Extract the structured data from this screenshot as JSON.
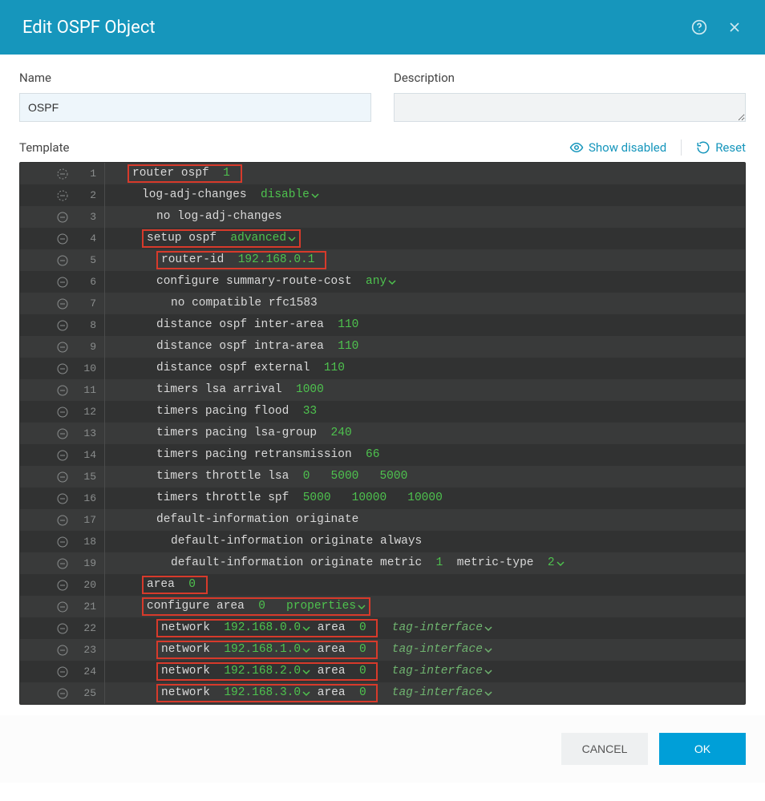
{
  "dialog": {
    "title": "Edit OSPF Object",
    "name_label": "Name",
    "name_value": "OSPF",
    "desc_label": "Description",
    "desc_value": "",
    "template_label": "Template",
    "show_disabled": "Show disabled",
    "reset": "Reset",
    "cancel": "CANCEL",
    "ok": "OK"
  },
  "colors": {
    "header_bg": "#1696bc",
    "link": "#1696bc",
    "editor_bg_odd": "#393a3a",
    "editor_bg_even": "#313232",
    "editor_text": "#d9d9d9",
    "green": "#4ec24e",
    "highlight_border": "#d73a2b",
    "gutter_text": "#8a8d8d"
  },
  "lines": [
    {
      "n": 1,
      "gicon": "dash",
      "indent": 1,
      "highlight": true,
      "segments": [
        {
          "t": "router ospf ",
          "c": "grey"
        },
        {
          "t": " 1 ",
          "c": "green"
        }
      ]
    },
    {
      "n": 2,
      "gicon": "dash",
      "indent": 2,
      "highlight": false,
      "segments": [
        {
          "t": "log-adj-changes  ",
          "c": "grey"
        },
        {
          "t": "disable",
          "c": "green",
          "dd": true
        }
      ]
    },
    {
      "n": 3,
      "gicon": "minus",
      "indent": 3,
      "highlight": false,
      "segments": [
        {
          "t": "no log-adj-changes",
          "c": "grey"
        }
      ]
    },
    {
      "n": 4,
      "gicon": "minus",
      "indent": 2,
      "highlight": true,
      "segments": [
        {
          "t": "setup ospf ",
          "c": "grey"
        },
        {
          "t": " advanced",
          "c": "green",
          "dd": true
        }
      ]
    },
    {
      "n": 5,
      "gicon": "minus",
      "indent": 3,
      "highlight": true,
      "segments": [
        {
          "t": "router-id ",
          "c": "grey"
        },
        {
          "t": " 192.168.0.1 ",
          "c": "green"
        }
      ]
    },
    {
      "n": 6,
      "gicon": "minus",
      "indent": 3,
      "highlight": false,
      "segments": [
        {
          "t": "configure summary-route-cost  ",
          "c": "grey"
        },
        {
          "t": "any",
          "c": "green",
          "dd": true
        }
      ]
    },
    {
      "n": 7,
      "gicon": "minus",
      "indent": 4,
      "highlight": false,
      "segments": [
        {
          "t": "no compatible rfc1583",
          "c": "grey"
        }
      ]
    },
    {
      "n": 8,
      "gicon": "minus",
      "indent": 3,
      "highlight": false,
      "segments": [
        {
          "t": "distance ospf inter-area  ",
          "c": "grey"
        },
        {
          "t": "110",
          "c": "green"
        }
      ]
    },
    {
      "n": 9,
      "gicon": "minus",
      "indent": 3,
      "highlight": false,
      "segments": [
        {
          "t": "distance ospf intra-area  ",
          "c": "grey"
        },
        {
          "t": "110",
          "c": "green"
        }
      ]
    },
    {
      "n": 10,
      "gicon": "minus",
      "indent": 3,
      "highlight": false,
      "segments": [
        {
          "t": "distance ospf external  ",
          "c": "grey"
        },
        {
          "t": "110",
          "c": "green"
        }
      ]
    },
    {
      "n": 11,
      "gicon": "minus",
      "indent": 3,
      "highlight": false,
      "segments": [
        {
          "t": "timers lsa arrival  ",
          "c": "grey"
        },
        {
          "t": "1000",
          "c": "green"
        }
      ]
    },
    {
      "n": 12,
      "gicon": "minus",
      "indent": 3,
      "highlight": false,
      "segments": [
        {
          "t": "timers pacing flood  ",
          "c": "grey"
        },
        {
          "t": "33",
          "c": "green"
        }
      ]
    },
    {
      "n": 13,
      "gicon": "minus",
      "indent": 3,
      "highlight": false,
      "segments": [
        {
          "t": "timers pacing lsa-group  ",
          "c": "grey"
        },
        {
          "t": "240",
          "c": "green"
        }
      ]
    },
    {
      "n": 14,
      "gicon": "minus",
      "indent": 3,
      "highlight": false,
      "segments": [
        {
          "t": "timers pacing retransmission  ",
          "c": "grey"
        },
        {
          "t": "66",
          "c": "green"
        }
      ]
    },
    {
      "n": 15,
      "gicon": "minus",
      "indent": 3,
      "highlight": false,
      "segments": [
        {
          "t": "timers throttle lsa  ",
          "c": "grey"
        },
        {
          "t": "0",
          "c": "green"
        },
        {
          "t": "   ",
          "c": "grey"
        },
        {
          "t": "5000",
          "c": "green"
        },
        {
          "t": "   ",
          "c": "grey"
        },
        {
          "t": "5000",
          "c": "green"
        }
      ]
    },
    {
      "n": 16,
      "gicon": "minus",
      "indent": 3,
      "highlight": false,
      "segments": [
        {
          "t": "timers throttle spf  ",
          "c": "grey"
        },
        {
          "t": "5000",
          "c": "green"
        },
        {
          "t": "   ",
          "c": "grey"
        },
        {
          "t": "10000",
          "c": "green"
        },
        {
          "t": "   ",
          "c": "grey"
        },
        {
          "t": "10000",
          "c": "green"
        }
      ]
    },
    {
      "n": 17,
      "gicon": "minus",
      "indent": 3,
      "highlight": false,
      "segments": [
        {
          "t": "default-information originate",
          "c": "grey"
        }
      ]
    },
    {
      "n": 18,
      "gicon": "minus",
      "indent": 4,
      "highlight": false,
      "segments": [
        {
          "t": "default-information originate always",
          "c": "grey"
        }
      ]
    },
    {
      "n": 19,
      "gicon": "minus",
      "indent": 4,
      "highlight": false,
      "segments": [
        {
          "t": "default-information originate metric  ",
          "c": "grey"
        },
        {
          "t": "1",
          "c": "green"
        },
        {
          "t": "  metric-type  ",
          "c": "grey"
        },
        {
          "t": "2",
          "c": "green",
          "dd": true
        }
      ]
    },
    {
      "n": 20,
      "gicon": "minus",
      "indent": 2,
      "highlight": true,
      "segments": [
        {
          "t": "area ",
          "c": "grey"
        },
        {
          "t": " 0 ",
          "c": "green"
        }
      ]
    },
    {
      "n": 21,
      "gicon": "minus",
      "indent": 2,
      "highlight": true,
      "segments": [
        {
          "t": "configure area ",
          "c": "grey"
        },
        {
          "t": " 0",
          "c": "green"
        },
        {
          "t": "   ",
          "c": "grey"
        },
        {
          "t": "properties",
          "c": "green",
          "dd": true
        }
      ]
    },
    {
      "n": 22,
      "gicon": "minus",
      "indent": 3,
      "highlight": true,
      "segments": [
        {
          "t": "network ",
          "c": "grey"
        },
        {
          "t": " 192.168.0.0",
          "c": "green",
          "dd": true
        },
        {
          "t": " area ",
          "c": "grey"
        },
        {
          "t": " 0 ",
          "c": "green"
        }
      ],
      "tail": {
        "t": "tag-interface",
        "dd": true
      }
    },
    {
      "n": 23,
      "gicon": "minus",
      "indent": 3,
      "highlight": true,
      "segments": [
        {
          "t": "network ",
          "c": "grey"
        },
        {
          "t": " 192.168.1.0",
          "c": "green",
          "dd": true
        },
        {
          "t": " area ",
          "c": "grey"
        },
        {
          "t": " 0 ",
          "c": "green"
        }
      ],
      "tail": {
        "t": "tag-interface",
        "dd": true
      }
    },
    {
      "n": 24,
      "gicon": "minus",
      "indent": 3,
      "highlight": true,
      "segments": [
        {
          "t": "network ",
          "c": "grey"
        },
        {
          "t": " 192.168.2.0",
          "c": "green",
          "dd": true
        },
        {
          "t": " area ",
          "c": "grey"
        },
        {
          "t": " 0 ",
          "c": "green"
        }
      ],
      "tail": {
        "t": "tag-interface",
        "dd": true
      }
    },
    {
      "n": 25,
      "gicon": "minus",
      "indent": 3,
      "highlight": true,
      "segments": [
        {
          "t": "network ",
          "c": "grey"
        },
        {
          "t": " 192.168.3.0",
          "c": "green",
          "dd": true
        },
        {
          "t": " area ",
          "c": "grey"
        },
        {
          "t": " 0 ",
          "c": "green"
        }
      ],
      "tail": {
        "t": "tag-interface",
        "dd": true
      }
    }
  ]
}
